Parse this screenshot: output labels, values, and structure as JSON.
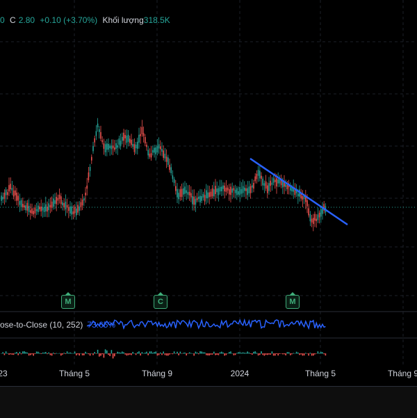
{
  "legend": {
    "o_fragment": "0",
    "close_label": "C",
    "close_value": "2.80",
    "change": "+0.10 (+3.70%)",
    "volume_label": "Khối lượng",
    "volume_value": "318.5K"
  },
  "indicator": {
    "name": "ose-to-Close (10, 252)",
    "value": "73.65%"
  },
  "badges": [
    "M",
    "C",
    "M"
  ],
  "x_axis": {
    "ticks": [
      "23",
      "Tháng 5",
      "Tháng 9",
      "2024",
      "Tháng 5",
      "Tháng 9"
    ]
  },
  "colors": {
    "up": "#26a69a",
    "down": "#ef5350",
    "trendline": "#2962ff",
    "indicator_line": "#2962ff",
    "badge": "#3fae7a",
    "background": "#000000"
  }
}
